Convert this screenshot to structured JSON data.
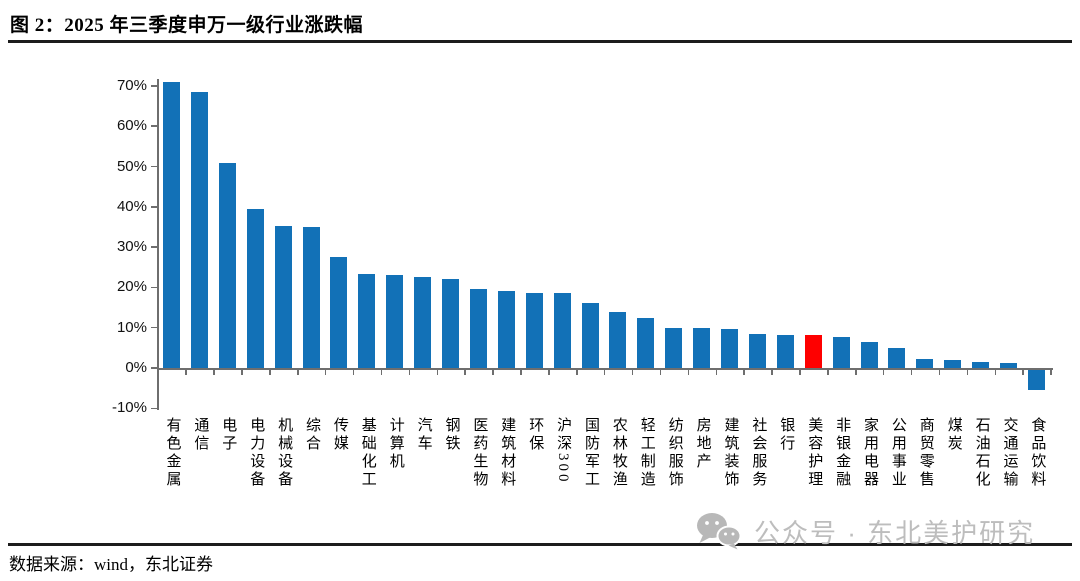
{
  "figure": {
    "title": "图 2：2025 年三季度申万一级行业涨跌幅",
    "source": "数据来源：wind，东北证券",
    "watermark": "公众号 · 东北美护研究"
  },
  "chart_data": {
    "type": "bar",
    "title": "2025 年三季度申万一级行业涨跌幅",
    "categories": [
      "有色金属",
      "通信",
      "电子",
      "电力设备",
      "机械设备",
      "综合",
      "传媒",
      "基础化工",
      "计算机",
      "汽车",
      "钢铁",
      "医药生物",
      "建筑材料",
      "环保",
      "沪深300",
      "国防军工",
      "农林牧渔",
      "轻工制造",
      "纺织服饰",
      "房地产",
      "建筑装饰",
      "社会服务",
      "银行",
      "美容护理",
      "非银金融",
      "家用电器",
      "公用事业",
      "商贸零售",
      "煤炭",
      "石油石化",
      "交通运输",
      "食品饮料"
    ],
    "values": [
      71.0,
      68.5,
      50.8,
      39.4,
      35.3,
      34.9,
      27.6,
      23.3,
      23.0,
      22.6,
      22.0,
      19.7,
      19.0,
      18.7,
      18.6,
      16.2,
      13.8,
      12.5,
      10.0,
      9.9,
      9.6,
      8.4,
      8.3,
      8.2,
      7.8,
      6.5,
      4.9,
      2.2,
      1.9,
      1.6,
      1.2,
      -5.5
    ],
    "unit": "%",
    "bar_color": "#1271B7",
    "highlight_category": "美容护理",
    "highlight_color": "#FE0000",
    "axis_color": "#6e6e6e",
    "ylim": [
      -10,
      70
    ],
    "ytick_values": [
      70,
      60,
      50,
      40,
      30,
      20,
      10,
      0,
      -10
    ],
    "ytick_labels": [
      "70%",
      "60%",
      "50%",
      "40%",
      "30%",
      "20%",
      "10%",
      "0%",
      "-10%"
    ],
    "xlabel": "",
    "ylabel": "",
    "grid": false,
    "legend": "none"
  }
}
